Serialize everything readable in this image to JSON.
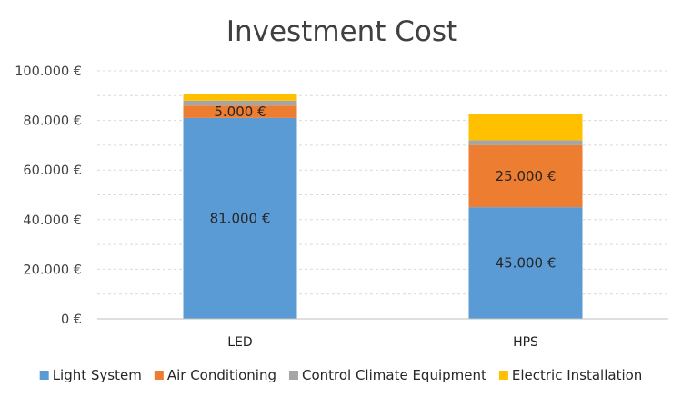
{
  "chart_data": {
    "type": "bar",
    "stacked": true,
    "title": "Investment Cost",
    "categories": [
      "LED",
      "HPS"
    ],
    "series": [
      {
        "name": "Light System",
        "values": [
          81000,
          45000
        ],
        "color": "#5b9bd5",
        "labels": [
          "81.000 €",
          "45.000 €"
        ]
      },
      {
        "name": "Air Conditioning",
        "values": [
          5000,
          25000
        ],
        "color": "#ed7d31",
        "labels": [
          "5.000 €",
          "25.000 €"
        ]
      },
      {
        "name": "Control Climate Equipment",
        "values": [
          2000,
          2000
        ],
        "color": "#a5a5a5",
        "labels": [
          "",
          ""
        ]
      },
      {
        "name": "Electric Installation",
        "values": [
          2500,
          10500
        ],
        "color": "#ffc000",
        "labels": [
          "",
          ""
        ]
      }
    ],
    "ylim": [
      0,
      100000
    ],
    "yticks": [
      0,
      20000,
      40000,
      60000,
      80000,
      100000
    ],
    "ytick_labels": [
      "0 €",
      "20.000 €",
      "40.000 €",
      "60.000 €",
      "80.000 €",
      "100.000 €"
    ],
    "grid": true,
    "legend_position": "bottom"
  }
}
